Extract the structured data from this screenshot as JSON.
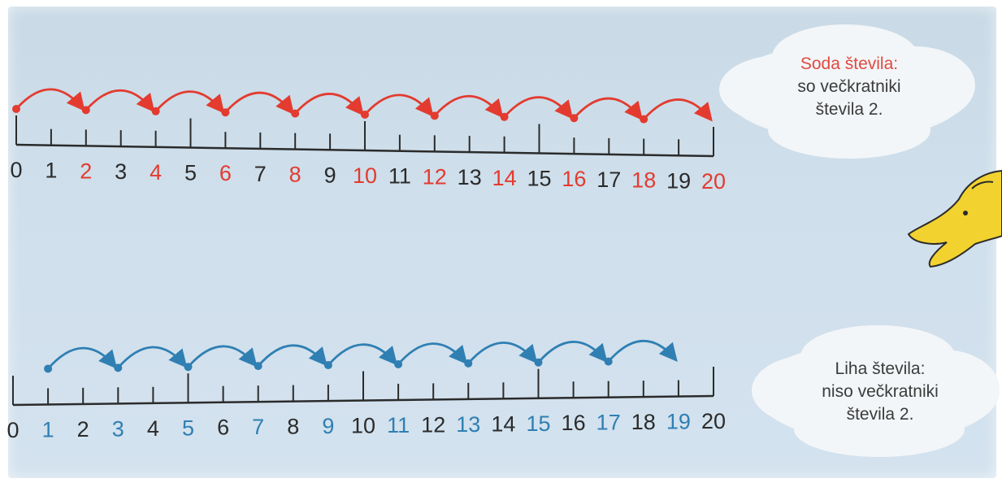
{
  "colors": {
    "even": "#e33b2f",
    "odd": "#2f7fb3",
    "neutral": "#2b2b2b",
    "cloud": "#f3f6f8",
    "fish": "#f2d22e"
  },
  "number_lines": [
    {
      "id": "even",
      "ticks": [
        0,
        1,
        2,
        3,
        4,
        5,
        6,
        7,
        8,
        9,
        10,
        11,
        12,
        13,
        14,
        15,
        16,
        17,
        18,
        19,
        20
      ],
      "highlighted": [
        2,
        4,
        6,
        8,
        10,
        12,
        14,
        16,
        18,
        20
      ],
      "jumps": [
        [
          0,
          2
        ],
        [
          2,
          4
        ],
        [
          4,
          6
        ],
        [
          6,
          8
        ],
        [
          8,
          10
        ],
        [
          10,
          12
        ],
        [
          12,
          14
        ],
        [
          14,
          16
        ],
        [
          16,
          18
        ],
        [
          18,
          20
        ]
      ]
    },
    {
      "id": "odd",
      "ticks": [
        0,
        1,
        2,
        3,
        4,
        5,
        6,
        7,
        8,
        9,
        10,
        11,
        12,
        13,
        14,
        15,
        16,
        17,
        18,
        19,
        20
      ],
      "highlighted": [
        1,
        3,
        5,
        7,
        9,
        11,
        13,
        15,
        17,
        19
      ],
      "jumps": [
        [
          1,
          3
        ],
        [
          3,
          5
        ],
        [
          5,
          7
        ],
        [
          7,
          9
        ],
        [
          9,
          11
        ],
        [
          11,
          13
        ],
        [
          13,
          15
        ],
        [
          15,
          17
        ],
        [
          17,
          19
        ]
      ]
    }
  ],
  "clouds": {
    "even": {
      "title": "Soda števila:",
      "line2": "so večkratniki",
      "line3": "števila 2."
    },
    "odd": {
      "title": "Liha števila:",
      "line2": "niso večkratniki",
      "line3": "števila 2."
    }
  },
  "decoration": {
    "icon": "fish-icon"
  }
}
